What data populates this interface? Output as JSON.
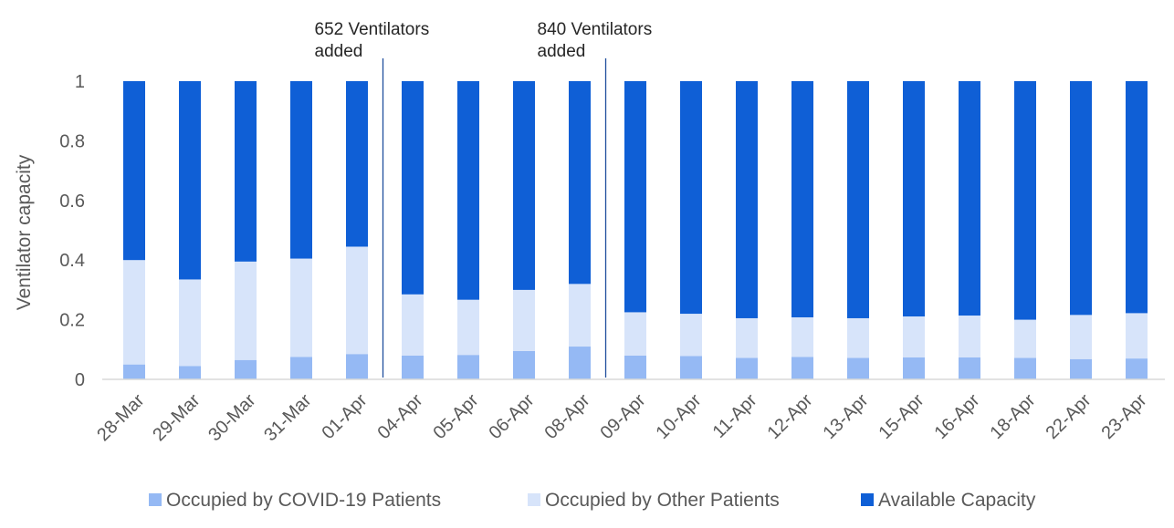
{
  "chart_data": {
    "type": "bar",
    "stacked": true,
    "ylabel": "Ventilator capacity",
    "xlabel": "",
    "ylim": [
      0,
      1
    ],
    "yticks": [
      "0",
      "0.2",
      "0.4",
      "0.6",
      "0.8",
      "1"
    ],
    "grid": false,
    "legend_position": "bottom",
    "categories": [
      "28-Mar",
      "29-Mar",
      "30-Mar",
      "31-Mar",
      "01-Apr",
      "04-Apr",
      "05-Apr",
      "06-Apr",
      "08-Apr",
      "09-Apr",
      "10-Apr",
      "11-Apr",
      "12-Apr",
      "13-Apr",
      "15-Apr",
      "16-Apr",
      "18-Apr",
      "22-Apr",
      "23-Apr"
    ],
    "series": [
      {
        "name": "Occupied by COVID-19 Patients",
        "color": "#95b9f4",
        "values": [
          0.05,
          0.045,
          0.065,
          0.075,
          0.085,
          0.08,
          0.082,
          0.095,
          0.11,
          0.08,
          0.078,
          0.072,
          0.075,
          0.072,
          0.074,
          0.074,
          0.072,
          0.068,
          0.07
        ]
      },
      {
        "name": "Occupied by Other Patients",
        "color": "#d7e4fa",
        "values": [
          0.35,
          0.29,
          0.33,
          0.33,
          0.36,
          0.205,
          0.185,
          0.205,
          0.21,
          0.145,
          0.142,
          0.133,
          0.133,
          0.133,
          0.137,
          0.14,
          0.128,
          0.148,
          0.152
        ]
      },
      {
        "name": "Available Capacity",
        "color": "#0f5fd6",
        "values": [
          0.6,
          0.665,
          0.605,
          0.595,
          0.555,
          0.715,
          0.733,
          0.7,
          0.68,
          0.775,
          0.78,
          0.795,
          0.792,
          0.795,
          0.789,
          0.786,
          0.8,
          0.784,
          0.778
        ]
      }
    ],
    "annotations": [
      {
        "lines": [
          "652 Ventilators",
          "added"
        ],
        "between": [
          "01-Apr",
          "04-Apr"
        ]
      },
      {
        "lines": [
          "840 Ventilators",
          "added"
        ],
        "between": [
          "08-Apr",
          "09-Apr"
        ]
      }
    ]
  }
}
